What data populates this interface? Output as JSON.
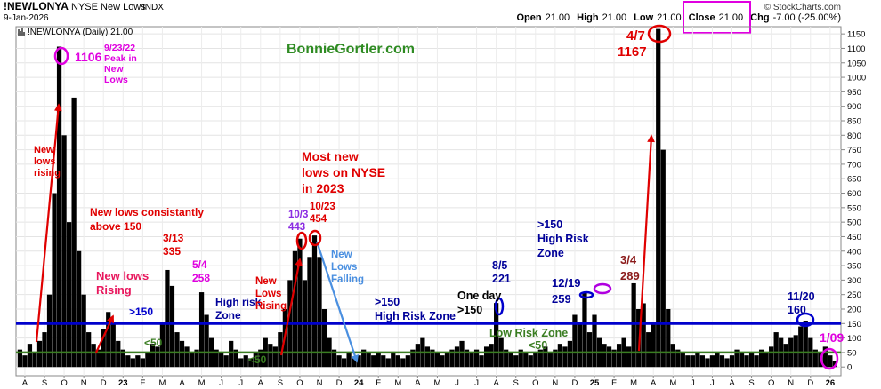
{
  "chart_data": {
    "type": "bar",
    "symbol": "!NEWLONYA",
    "name": "NYSE New Lows",
    "exchange": "INDX",
    "date": "9-Jan-2026",
    "credit": "© StockCharts.com",
    "quote": [
      {
        "label": "Open",
        "value": "21.00"
      },
      {
        "label": "High",
        "value": "21.00"
      },
      {
        "label": "Low",
        "value": "21.00"
      },
      {
        "label": "Close",
        "value": "21.00"
      },
      {
        "label": "Chg",
        "value": "-7.00 (-25.00%)"
      }
    ],
    "xlim": [
      -0.45,
      41.55
    ],
    "ylim": [
      -30,
      1175
    ],
    "grid": true,
    "xticks": [
      {
        "value": 0,
        "label": "A"
      },
      {
        "value": 1,
        "label": "S"
      },
      {
        "value": 2,
        "label": "O"
      },
      {
        "value": 3,
        "label": "N"
      },
      {
        "value": 4,
        "label": "D"
      },
      {
        "value": 5,
        "label": "23"
      },
      {
        "value": 6,
        "label": "F"
      },
      {
        "value": 7,
        "label": "M"
      },
      {
        "value": 8,
        "label": "A"
      },
      {
        "value": 9,
        "label": "M"
      },
      {
        "value": 10,
        "label": "J"
      },
      {
        "value": 11,
        "label": "J"
      },
      {
        "value": 12,
        "label": "A"
      },
      {
        "value": 13,
        "label": "S"
      },
      {
        "value": 14,
        "label": "O"
      },
      {
        "value": 15,
        "label": "N"
      },
      {
        "value": 16,
        "label": "D"
      },
      {
        "value": 17,
        "label": "24"
      },
      {
        "value": 18,
        "label": "F"
      },
      {
        "value": 19,
        "label": "M"
      },
      {
        "value": 20,
        "label": "A"
      },
      {
        "value": 21,
        "label": "M"
      },
      {
        "value": 22,
        "label": "J"
      },
      {
        "value": 23,
        "label": "J"
      },
      {
        "value": 24,
        "label": "A"
      },
      {
        "value": 25,
        "label": "S"
      },
      {
        "value": 26,
        "label": "O"
      },
      {
        "value": 27,
        "label": "N"
      },
      {
        "value": 28,
        "label": "D"
      },
      {
        "value": 29,
        "label": "25"
      },
      {
        "value": 30,
        "label": "F"
      },
      {
        "value": 31,
        "label": "M"
      },
      {
        "value": 32,
        "label": "A"
      },
      {
        "value": 33,
        "label": "M"
      },
      {
        "value": 34,
        "label": "J"
      },
      {
        "value": 35,
        "label": "J"
      },
      {
        "value": 36,
        "label": "A"
      },
      {
        "value": 37,
        "label": "S"
      },
      {
        "value": 38,
        "label": "O"
      },
      {
        "value": 39,
        "label": "N"
      },
      {
        "value": 40,
        "label": "D"
      },
      {
        "value": 41,
        "label": "26"
      }
    ],
    "yticks": [
      0,
      50,
      100,
      150,
      200,
      250,
      300,
      350,
      400,
      450,
      500,
      550,
      600,
      650,
      700,
      750,
      800,
      850,
      900,
      950,
      1000,
      1050,
      1100,
      1150
    ],
    "x": [
      -0.25,
      0,
      0.25,
      0.5,
      0.75,
      1,
      1.25,
      1.5,
      1.75,
      2,
      2.25,
      2.5,
      2.75,
      3,
      3.25,
      3.5,
      3.75,
      4,
      4.25,
      4.5,
      4.75,
      5,
      5.25,
      5.5,
      5.75,
      6,
      6.25,
      6.5,
      6.75,
      7,
      7.25,
      7.5,
      7.75,
      8,
      8.25,
      8.5,
      8.75,
      9,
      9.25,
      9.5,
      9.75,
      10,
      10.25,
      10.5,
      10.75,
      11,
      11.25,
      11.5,
      11.75,
      12,
      12.25,
      12.5,
      12.75,
      13,
      13.25,
      13.5,
      13.75,
      14,
      14.25,
      14.5,
      14.75,
      15,
      15.25,
      15.5,
      15.75,
      16,
      16.25,
      16.5,
      16.75,
      17,
      17.25,
      17.5,
      17.75,
      18,
      18.25,
      18.5,
      18.75,
      19,
      19.25,
      19.5,
      19.75,
      20,
      20.25,
      20.5,
      20.75,
      21,
      21.25,
      21.5,
      21.75,
      22,
      22.25,
      22.5,
      22.75,
      23,
      23.25,
      23.5,
      23.75,
      24,
      24.25,
      24.5,
      24.75,
      25,
      25.25,
      25.5,
      25.75,
      26,
      26.25,
      26.5,
      26.75,
      27,
      27.25,
      27.5,
      27.75,
      28,
      28.25,
      28.5,
      28.75,
      29,
      29.25,
      29.5,
      29.75,
      30,
      30.25,
      30.5,
      30.75,
      31,
      31.25,
      31.5,
      31.75,
      32,
      32.25,
      32.5,
      32.75,
      33,
      33.25,
      33.5,
      33.75,
      34,
      34.25,
      34.5,
      34.75,
      35,
      35.25,
      35.5,
      35.75,
      36,
      36.25,
      36.5,
      36.75,
      37,
      37.25,
      37.5,
      37.75,
      38,
      38.25,
      38.5,
      38.75,
      39,
      39.25,
      39.5,
      39.75,
      40,
      40.25,
      40.5,
      40.75,
      41,
      41.25
    ],
    "series": [
      {
        "name": "!NEWLONYA (Daily) 21.00",
        "color": "#000000",
        "values": [
          60,
          40,
          80,
          50,
          90,
          120,
          250,
          600,
          1106,
          800,
          500,
          930,
          400,
          250,
          120,
          80,
          60,
          130,
          190,
          150,
          90,
          60,
          40,
          30,
          40,
          30,
          50,
          80,
          70,
          150,
          335,
          280,
          120,
          90,
          70,
          50,
          60,
          258,
          180,
          100,
          60,
          50,
          40,
          90,
          60,
          30,
          40,
          30,
          50,
          60,
          100,
          80,
          70,
          120,
          200,
          300,
          400,
          443,
          300,
          380,
          454,
          380,
          200,
          100,
          60,
          40,
          30,
          50,
          30,
          40,
          60,
          50,
          40,
          50,
          40,
          30,
          50,
          40,
          30,
          40,
          60,
          80,
          100,
          70,
          60,
          50,
          40,
          50,
          60,
          70,
          90,
          60,
          50,
          60,
          40,
          70,
          80,
          221,
          100,
          60,
          50,
          40,
          60,
          50,
          40,
          50,
          60,
          70,
          50,
          60,
          80,
          70,
          90,
          180,
          150,
          259,
          120,
          180,
          100,
          80,
          70,
          60,
          80,
          100,
          70,
          289,
          200,
          220,
          120,
          150,
          1167,
          750,
          200,
          80,
          60,
          50,
          40,
          40,
          50,
          40,
          30,
          40,
          50,
          40,
          30,
          40,
          60,
          50,
          40,
          50,
          40,
          60,
          50,
          70,
          120,
          100,
          80,
          100,
          110,
          140,
          160,
          100,
          60,
          50,
          70,
          40,
          21
        ]
      }
    ],
    "reference_lines": [
      {
        "value": 150,
        "color": "#0000cc"
      },
      {
        "value": 50,
        "color": "#3a7d22"
      }
    ],
    "annotations": [
      {
        "lines": [
          "1106"
        ],
        "color": "#e000e0"
      },
      {
        "lines": [
          "9/23/22",
          "Peak in",
          "New",
          "Lows"
        ],
        "color": "#e000e0"
      },
      {
        "lines": [
          "New",
          "lows",
          "rising"
        ],
        "color": "#e00000"
      },
      {
        "lines": [
          "New lows consistantly",
          "above 150"
        ],
        "color": "#e00000"
      },
      {
        "lines": [
          "New lows",
          "Rising"
        ],
        "color": "#e8175d"
      },
      {
        "lines": [
          ">150"
        ],
        "color": "#0000cc"
      },
      {
        "lines": [
          "<50"
        ],
        "color": "#3a7d22"
      },
      {
        "lines": [
          "3/13",
          "335"
        ],
        "color": "#e00000"
      },
      {
        "lines": [
          "5/4",
          "258"
        ],
        "color": "#e000e0"
      },
      {
        "lines": [
          "High risk",
          "Zone"
        ],
        "color": "#000099"
      },
      {
        "lines": [
          "<50"
        ],
        "color": "#3a7d22"
      },
      {
        "lines": [
          "New",
          "Lows",
          "Rising"
        ],
        "color": "#e00000"
      },
      {
        "lines": [
          "10/3",
          "443"
        ],
        "color": "#8a2be2"
      },
      {
        "lines": [
          "10/23",
          "454"
        ],
        "color": "#e00000"
      },
      {
        "lines": [
          "Most new",
          "lows on NYSE",
          "in 2023"
        ],
        "color": "#e00000"
      },
      {
        "lines": [
          "New",
          "Lows",
          "Falling"
        ],
        "color": "#4a8fe0"
      },
      {
        "lines": [
          ">150",
          "High Risk Zone"
        ],
        "color": "#000099"
      },
      {
        "lines": [
          "One day",
          ">150"
        ],
        "color": "#000000"
      },
      {
        "lines": [
          "8/5",
          "221"
        ],
        "color": "#000099"
      },
      {
        "lines": [
          ">150",
          "High Risk",
          "Zone"
        ],
        "color": "#000099"
      },
      {
        "lines": [
          "12/19",
          "259"
        ],
        "color": "#000099"
      },
      {
        "lines": [
          "3/4",
          "289"
        ],
        "color": "#8b1a1a"
      },
      {
        "lines": [
          "4/7",
          "1167"
        ],
        "color": "#e00000"
      },
      {
        "lines": [
          "Low Risk Zone"
        ],
        "color": "#3a7d22"
      },
      {
        "lines": [
          "<50"
        ],
        "color": "#3a7d22"
      },
      {
        "lines": [
          "11/20",
          "160"
        ],
        "color": "#000099"
      },
      {
        "lines": [
          "1/09"
        ],
        "color": "#e000e0"
      },
      {
        "lines": [
          "BonnieGortler.com"
        ],
        "color": "#2e8b22"
      }
    ]
  }
}
